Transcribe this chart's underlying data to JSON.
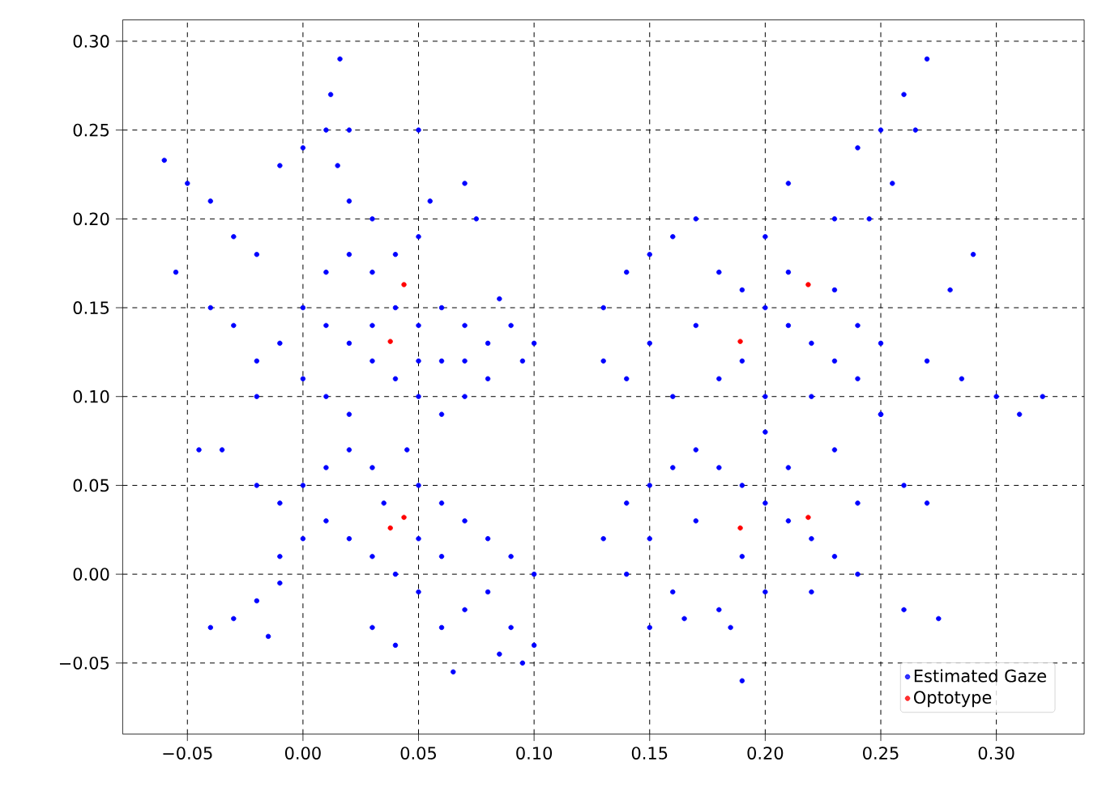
{
  "chart_data": {
    "type": "scatter",
    "xlim": [
      -0.078,
      0.338
    ],
    "ylim": [
      -0.09,
      0.312
    ],
    "xticks": [
      {
        "value": -0.05,
        "label": "−0.05"
      },
      {
        "value": 0,
        "label": "0.00"
      },
      {
        "value": 0.05,
        "label": "0.05"
      },
      {
        "value": 0.1,
        "label": "0.10"
      },
      {
        "value": 0.15,
        "label": "0.15"
      },
      {
        "value": 0.2,
        "label": "0.20"
      },
      {
        "value": 0.25,
        "label": "0.25"
      },
      {
        "value": 0.3,
        "label": "0.30"
      }
    ],
    "yticks": [
      {
        "value": -0.05,
        "label": "−0.05"
      },
      {
        "value": 0,
        "label": "0.00"
      },
      {
        "value": 0.05,
        "label": "0.05"
      },
      {
        "value": 0.1,
        "label": "0.10"
      },
      {
        "value": 0.15,
        "label": "0.15"
      },
      {
        "value": 0.2,
        "label": "0.20"
      },
      {
        "value": 0.25,
        "label": "0.25"
      },
      {
        "value": 0.3,
        "label": "0.30"
      }
    ],
    "grid": true,
    "legend": "bottom right",
    "marker": "circle",
    "series": [
      {
        "name": "Estimated Gaze",
        "color": "#0000ff",
        "x": [
          0.01,
          0.02,
          0.03,
          0.04,
          0.05,
          0.06,
          0.07,
          0.08,
          0.09,
          0.095,
          0.08,
          0.07,
          0.06,
          0.05,
          0.04,
          0.03,
          0.02,
          0.01,
          0.0,
          -0.01,
          -0.02,
          0.0,
          0.01,
          0.02,
          0.03,
          0.05,
          0.06,
          0.07,
          0.085,
          0.1,
          0.04,
          0.05,
          0.03,
          0.02,
          0.015,
          0.01,
          0.012,
          0.016,
          0.0,
          -0.01,
          0.02,
          0.05,
          0.055,
          0.075,
          0.07,
          -0.06,
          -0.05,
          -0.04,
          -0.03,
          -0.02,
          -0.055,
          -0.04,
          -0.03,
          -0.02,
          -0.035,
          -0.045,
          -0.02,
          -0.01,
          0.0,
          0.01,
          0.02,
          0.03,
          0.05,
          0.06,
          0.07,
          0.08,
          0.09,
          0.1,
          0.08,
          0.07,
          0.06,
          0.05,
          0.04,
          0.03,
          0.02,
          0.01,
          0.0,
          -0.01,
          0.05,
          0.06,
          0.09,
          0.095,
          0.085,
          0.065,
          0.04,
          0.03,
          0.1,
          -0.04,
          -0.03,
          -0.02,
          -0.01,
          -0.015,
          0.035,
          0.045,
          0.13,
          0.14,
          0.15,
          0.16,
          0.17,
          0.18,
          0.19,
          0.2,
          0.21,
          0.22,
          0.23,
          0.24,
          0.22,
          0.2,
          0.18,
          0.16,
          0.14,
          0.13,
          0.15,
          0.17,
          0.19,
          0.21,
          0.23,
          0.24,
          0.25,
          0.25,
          0.23,
          0.21,
          0.24,
          0.25,
          0.26,
          0.27,
          0.265,
          0.255,
          0.245,
          0.28,
          0.29,
          0.3,
          0.31,
          0.32,
          0.285,
          0.27,
          0.2,
          0.13,
          0.14,
          0.15,
          0.16,
          0.17,
          0.18,
          0.19,
          0.2,
          0.21,
          0.22,
          0.23,
          0.24,
          0.22,
          0.2,
          0.18,
          0.16,
          0.14,
          0.15,
          0.17,
          0.19,
          0.21,
          0.23,
          0.24,
          0.25,
          0.26,
          0.27,
          0.15,
          0.165,
          0.185,
          0.19,
          0.26,
          0.275,
          0.2
        ],
        "values": [
          0.17,
          0.18,
          0.17,
          0.15,
          0.14,
          0.15,
          0.14,
          0.13,
          0.14,
          0.12,
          0.11,
          0.1,
          0.09,
          0.1,
          0.11,
          0.12,
          0.13,
          0.14,
          0.15,
          0.13,
          0.12,
          0.11,
          0.1,
          0.09,
          0.14,
          0.12,
          0.12,
          0.12,
          0.155,
          0.13,
          0.18,
          0.19,
          0.2,
          0.21,
          0.23,
          0.25,
          0.27,
          0.29,
          0.24,
          0.23,
          0.25,
          0.25,
          0.21,
          0.2,
          0.22,
          0.233,
          0.22,
          0.21,
          0.19,
          0.18,
          0.17,
          0.15,
          0.14,
          0.1,
          0.07,
          0.07,
          0.05,
          0.04,
          0.05,
          0.06,
          0.07,
          0.06,
          0.05,
          0.04,
          0.03,
          0.02,
          0.01,
          0.0,
          -0.01,
          -0.02,
          -0.03,
          -0.01,
          0.0,
          0.01,
          0.02,
          0.03,
          0.02,
          0.01,
          0.02,
          0.01,
          -0.03,
          -0.05,
          -0.045,
          -0.055,
          -0.04,
          -0.03,
          -0.04,
          -0.03,
          -0.025,
          -0.015,
          -0.005,
          -0.035,
          0.04,
          0.07,
          0.15,
          0.17,
          0.18,
          0.19,
          0.2,
          0.17,
          0.16,
          0.15,
          0.14,
          0.13,
          0.12,
          0.11,
          0.1,
          0.1,
          0.11,
          0.1,
          0.11,
          0.12,
          0.13,
          0.14,
          0.12,
          0.17,
          0.16,
          0.14,
          0.13,
          0.09,
          0.2,
          0.22,
          0.24,
          0.25,
          0.27,
          0.29,
          0.25,
          0.22,
          0.2,
          0.16,
          0.18,
          0.1,
          0.09,
          0.1,
          0.11,
          0.12,
          0.19,
          0.02,
          0.04,
          0.05,
          0.06,
          0.07,
          0.06,
          0.05,
          0.04,
          0.03,
          0.02,
          0.01,
          0.0,
          -0.01,
          -0.01,
          -0.02,
          -0.01,
          0.0,
          0.02,
          0.03,
          0.01,
          0.06,
          0.07,
          0.04,
          0.09,
          0.05,
          0.04,
          -0.03,
          -0.025,
          -0.03,
          -0.06,
          -0.02,
          -0.025,
          0.08
        ]
      },
      {
        "name": "Optotype",
        "color": "#ff0000",
        "x": [
          0.0437,
          0.0378,
          0.0378,
          0.0437,
          0.1892,
          0.2186,
          0.1892,
          0.2186
        ],
        "values": [
          0.163,
          0.131,
          0.026,
          0.032,
          0.131,
          0.163,
          0.026,
          0.032
        ]
      }
    ]
  }
}
